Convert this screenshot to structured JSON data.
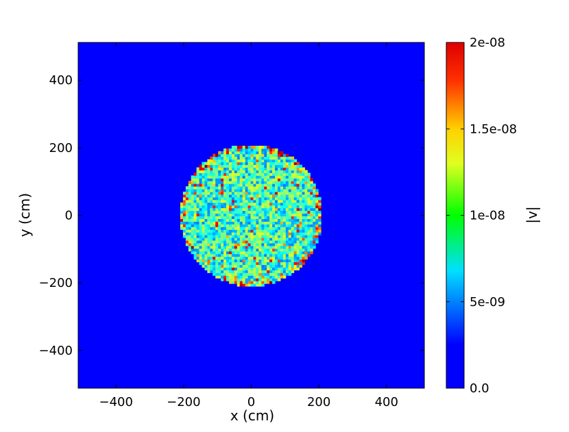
{
  "chart_data": {
    "type": "heatmap",
    "title": "",
    "xlabel": "x (cm)",
    "ylabel": "y (cm)",
    "xlim": [
      -512,
      512
    ],
    "ylim": [
      -512,
      512
    ],
    "x_ticks": [
      -400,
      -200,
      0,
      200,
      400
    ],
    "y_ticks": [
      -400,
      -200,
      0,
      200,
      400
    ],
    "x_tick_labels": [
      "−400",
      "−200",
      "0",
      "200",
      "400"
    ],
    "y_tick_labels": [
      "−400",
      "−200",
      "0",
      "200",
      "400"
    ],
    "colormap": "jet",
    "background_value": 0.0,
    "disk": {
      "center": [
        0,
        0
      ],
      "radius": 210,
      "typical_value_range": [
        5e-09,
        1.2e-08
      ],
      "max_value": 2e-08
    },
    "colorbar": {
      "label": "|v|",
      "vmin": 0.0,
      "vmax": 2e-08,
      "ticks": [
        0.0,
        5e-09,
        1e-08,
        1.5e-08,
        2e-08
      ],
      "tick_labels": [
        "0.0",
        "5e-09",
        "1e-08",
        "1.5e-08",
        "2e-08"
      ]
    },
    "grid": false,
    "legend": "none"
  }
}
